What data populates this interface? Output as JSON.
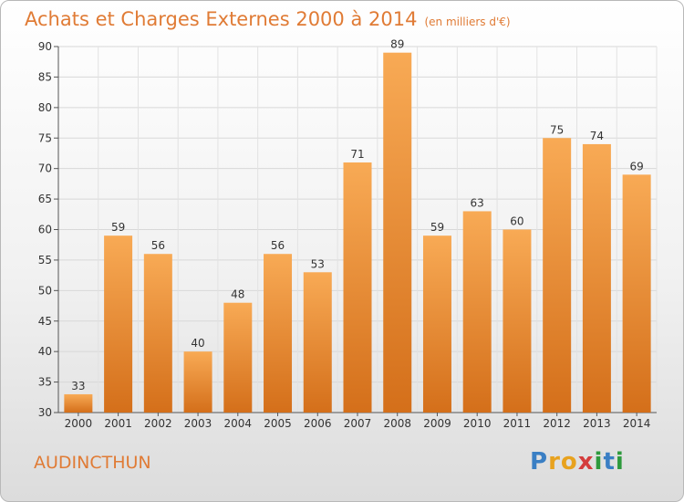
{
  "header": {
    "title": "Achats et Charges Externes 2000 à 2014",
    "subtitle": "(en milliers d'€)"
  },
  "footer": {
    "commune": "AUDINCTHUN",
    "logo": "Proxiti"
  },
  "colors": {
    "accent": "#e07b35",
    "bar_light": "#f7a650",
    "bar_dark": "#d6731d"
  },
  "chart_data": {
    "type": "bar",
    "categories": [
      "2000",
      "2001",
      "2002",
      "2003",
      "2004",
      "2005",
      "2006",
      "2007",
      "2008",
      "2009",
      "2010",
      "2011",
      "2012",
      "2013",
      "2014"
    ],
    "values": [
      33,
      59,
      56,
      40,
      48,
      56,
      53,
      71,
      89,
      59,
      63,
      60,
      75,
      74,
      69
    ],
    "title": "Achats et Charges Externes 2000 à 2014",
    "xlabel": "",
    "ylabel": "",
    "ylim": [
      30,
      90
    ],
    "yticks": [
      30,
      35,
      40,
      45,
      50,
      55,
      60,
      65,
      70,
      75,
      80,
      85,
      90
    ],
    "grid": true
  }
}
